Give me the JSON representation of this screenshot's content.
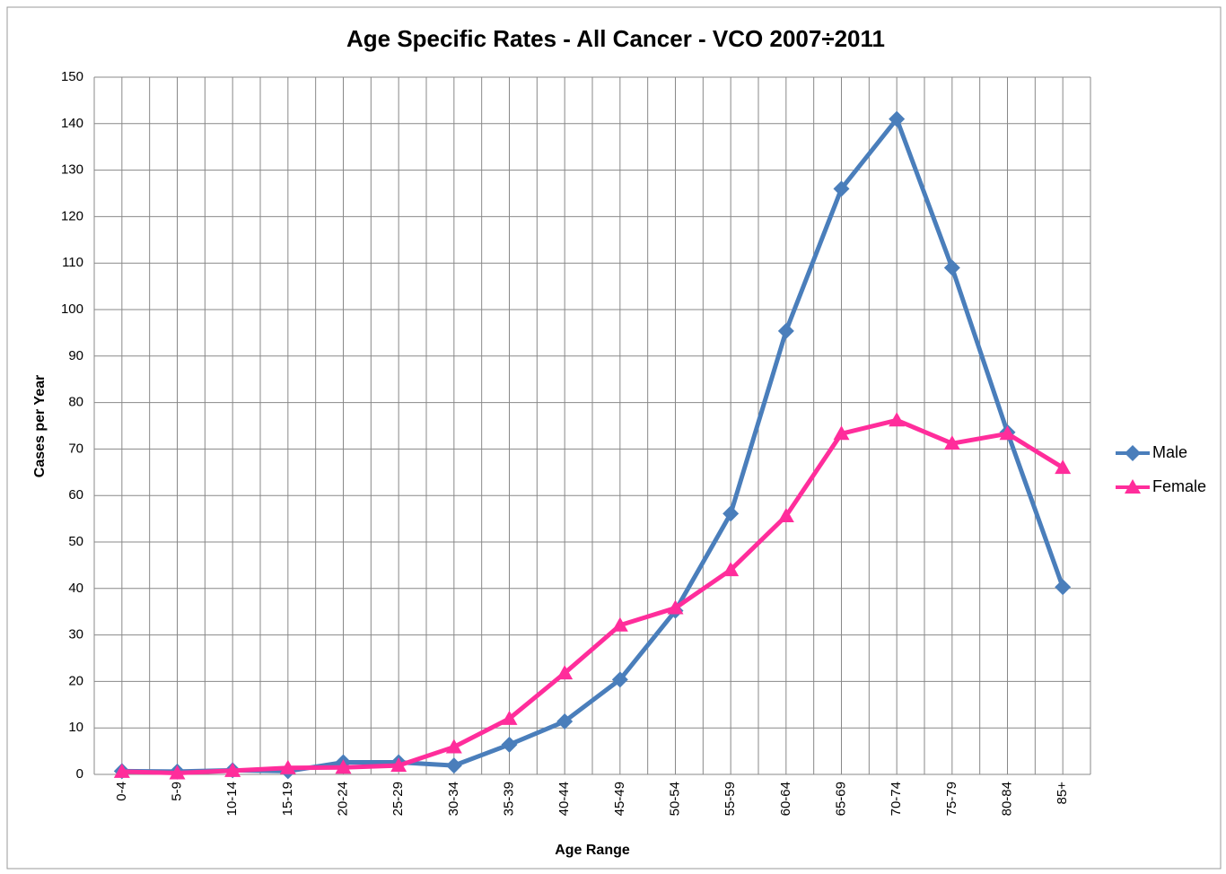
{
  "chart_data": {
    "type": "line",
    "title": "Age Specific Rates - All Cancer - VCO 2007÷2011",
    "x_label": "Age Range",
    "y_label": "Cases per Year",
    "categories": [
      "0-4",
      "5-9",
      "10-14",
      "15-19",
      "20-24",
      "25-29",
      "30-34",
      "35-39",
      "40-44",
      "45-49",
      "50-54",
      "55-59",
      "60-64",
      "65-69",
      "70-74",
      "75-79",
      "80-84",
      "85+"
    ],
    "series": [
      {
        "name": "Male",
        "color": "#4a7ebb",
        "marker": "diamond",
        "values": [
          0.7,
          0.6,
          0.9,
          0.7,
          2.6,
          2.6,
          1.9,
          6.4,
          11.4,
          20.4,
          35.2,
          56.1,
          95.4,
          126,
          141,
          109,
          73.6,
          40.3
        ]
      },
      {
        "name": "Female",
        "color": "#ff2d9b",
        "marker": "triangle",
        "values": [
          0.6,
          0.3,
          0.8,
          1.4,
          1.5,
          1.9,
          5.9,
          12,
          21.8,
          32.1,
          35.8,
          44,
          55.6,
          73.3,
          76.2,
          71.2,
          73.3,
          66
        ]
      }
    ],
    "ylim": [
      0,
      150
    ],
    "yticks": [
      0,
      10,
      20,
      30,
      40,
      50,
      60,
      70,
      80,
      90,
      100,
      110,
      120,
      130,
      140,
      150
    ],
    "grid": true,
    "legend": "right"
  }
}
